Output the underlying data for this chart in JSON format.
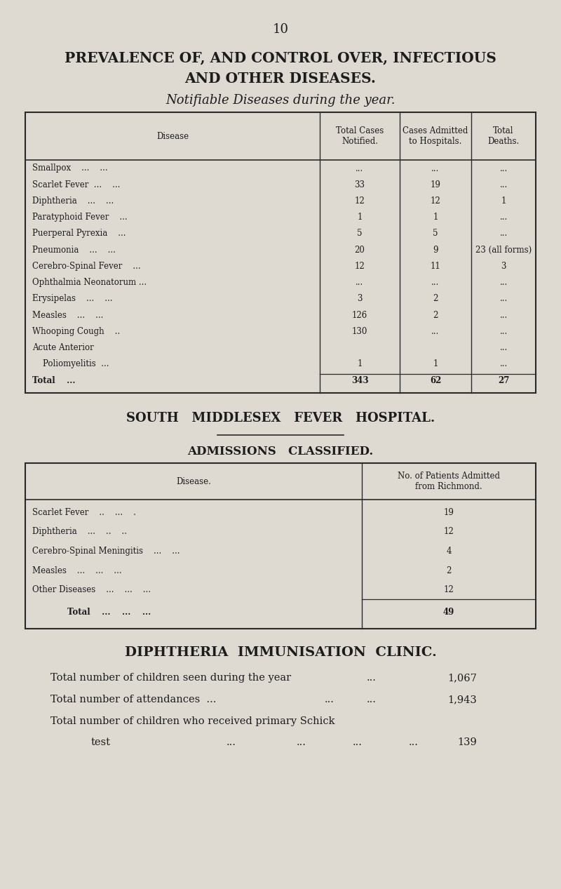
{
  "page_number": "10",
  "title_line1": "PREVALENCE OF, AND CONTROL OVER, INFECTIOUS",
  "title_line2": "AND OTHER DISEASES.",
  "subtitle": "Notifiable Diseases during the year.",
  "bg_color": "#dedad2",
  "text_color": "#1c1c1c",
  "t1_headers": [
    "Disease",
    "Total Cases\nNotified.",
    "Cases Admitted\nto Hospitals.",
    "Total\nDeaths."
  ],
  "t1_rows": [
    [
      "Smallpox    ...    ...",
      "...",
      "...",
      "..."
    ],
    [
      "Scarlet Fever  ...    ...",
      "33",
      "19",
      "..."
    ],
    [
      "Diphtheria    ...    ...",
      "12",
      "12",
      "1"
    ],
    [
      "Paratyphoid Fever    ...",
      "1",
      "1",
      "..."
    ],
    [
      "Puerperal Pyrexia    ...",
      "5",
      "5",
      "..."
    ],
    [
      "Pneumonia    ...    ...",
      "20",
      "9",
      "23 (all forms)"
    ],
    [
      "Cerebro-Spinal Fever    ...",
      "12",
      "11",
      "3"
    ],
    [
      "Ophthalmia Neonatorum ...",
      "...",
      "...",
      "..."
    ],
    [
      "Erysipelas    ...    ...",
      "3",
      "2",
      "..."
    ],
    [
      "Measles    ...    ...",
      "126",
      "2",
      "..."
    ],
    [
      "Whooping Cough    ..",
      "130",
      "...",
      "..."
    ],
    [
      "Acute Anterior",
      "",
      "",
      "..."
    ],
    [
      "    Poliomyelitis  ...",
      "1",
      "1",
      "..."
    ],
    [
      "Total    ...",
      "343",
      "62",
      "27"
    ]
  ],
  "section2_title": "SOUTH   MIDDLESEX   FEVER   HOSPITAL.",
  "section2_subtitle": "ADMISSIONS   CLASSIFIED.",
  "t2_headers": [
    "Disease.",
    "No. of Patients Admitted\nfrom Richmond."
  ],
  "t2_rows": [
    [
      "Scarlet Fever    ..    ...    .",
      "19"
    ],
    [
      "Diphtheria    ...    ..    ..",
      "12"
    ],
    [
      "Cerebro-Spinal Meningitis    ...    ...",
      "4"
    ],
    [
      "Measles    ...    ...    ...",
      "2"
    ],
    [
      "Other Diseases    ...    ...    ...",
      "12"
    ],
    [
      "Total    ...    ...    ...",
      "49"
    ]
  ],
  "section3_title": "DIPHTHERIA  IMMUNISATION  CLINIC.",
  "clinic_lines": [
    [
      "Total number of children seen during the year",
      "...",
      "1,067"
    ],
    [
      "Total number of attendances  ...",
      "...",
      "1,943"
    ],
    [
      "Total number of children who received primary Schick",
      "",
      ""
    ],
    [
      "    test    ...    ...    ...    ...",
      "...",
      "139"
    ]
  ]
}
